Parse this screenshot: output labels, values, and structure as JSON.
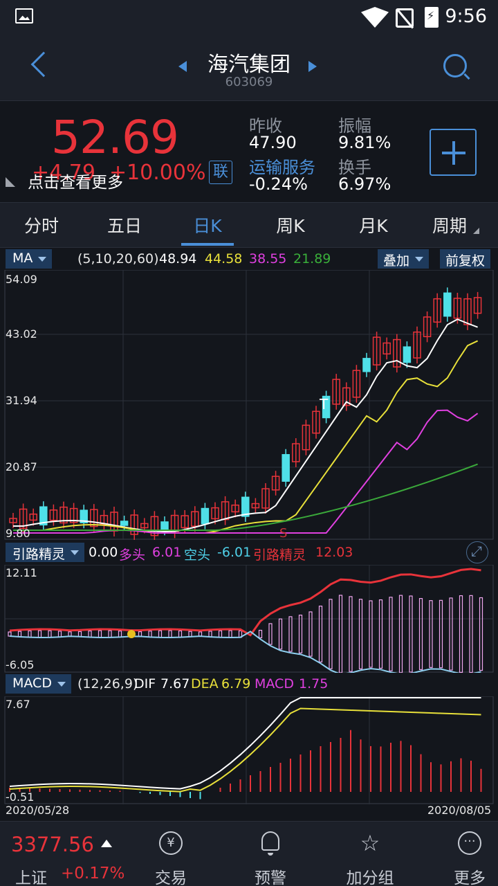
{
  "status_bar": {
    "time": "9:56"
  },
  "header": {
    "stock_name": "海汽集团",
    "stock_code": "603069"
  },
  "quote": {
    "price": "52.69",
    "change": "+4.79",
    "change_pct": "+10.00%",
    "hint": "点击查看更多",
    "lian_label": "联",
    "prev_close_label": "昨收",
    "prev_close": "47.90",
    "industry": "运输服务",
    "industry_change": "-0.24%",
    "amplitude_label": "振幅",
    "amplitude": "9.81%",
    "turnover_label": "换手",
    "turnover": "6.97%"
  },
  "tabs": [
    {
      "label": "分时"
    },
    {
      "label": "五日"
    },
    {
      "label": "日K"
    },
    {
      "label": "周K"
    },
    {
      "label": "月K"
    },
    {
      "label": "周期"
    }
  ],
  "ma_bar": {
    "select": "MA",
    "params": "(5,10,20,60)",
    "ma5": "48.94",
    "ma10": "44.58",
    "ma20": "38.55",
    "ma60": "21.89",
    "overlay_btn": "叠加",
    "adjust_btn": "前复权"
  },
  "kline": {
    "y_labels": [
      "54.09",
      "43.02",
      "31.94",
      "20.87",
      "9.80"
    ],
    "markers": {
      "t": "T",
      "s": "S"
    }
  },
  "ylj_bar": {
    "select": "引路精灵",
    "value": "0.00",
    "long_label": "多头",
    "long_value": "6.01",
    "short_label": "空头",
    "short_value": "-6.01",
    "ylj_label": "引路精灵",
    "ylj_value": "12.03",
    "y_top": "12.11",
    "y_bottom": "-6.05"
  },
  "macd_bar": {
    "select": "MACD",
    "params": "(12,26,9)",
    "dif_label": "DIF",
    "dif": "7.67",
    "dea_label": "DEA",
    "dea": "6.79",
    "macd_label": "MACD",
    "macd": "1.75",
    "y_top": "7.67",
    "y_bottom": "-0.51",
    "date_start": "2020/05/28",
    "date_end": "2020/08/05"
  },
  "bottom_nav": {
    "index_value": "3377.56",
    "index_name": "上证",
    "index_pct": "+0.17%",
    "items": [
      {
        "label": "交易",
        "icon": "yuan-exchange-icon"
      },
      {
        "label": "预警",
        "icon": "bell-icon"
      },
      {
        "label": "加分组",
        "icon": "star-icon"
      },
      {
        "label": "更多",
        "icon": "more-icon"
      }
    ]
  },
  "colors": {
    "up": "#e8333a",
    "down": "#4fe0e8",
    "accent": "#4a8fd8",
    "ma5": "#ffffff",
    "ma10": "#e8e03a",
    "ma20": "#e040e0",
    "ma60": "#3aa83a"
  }
}
